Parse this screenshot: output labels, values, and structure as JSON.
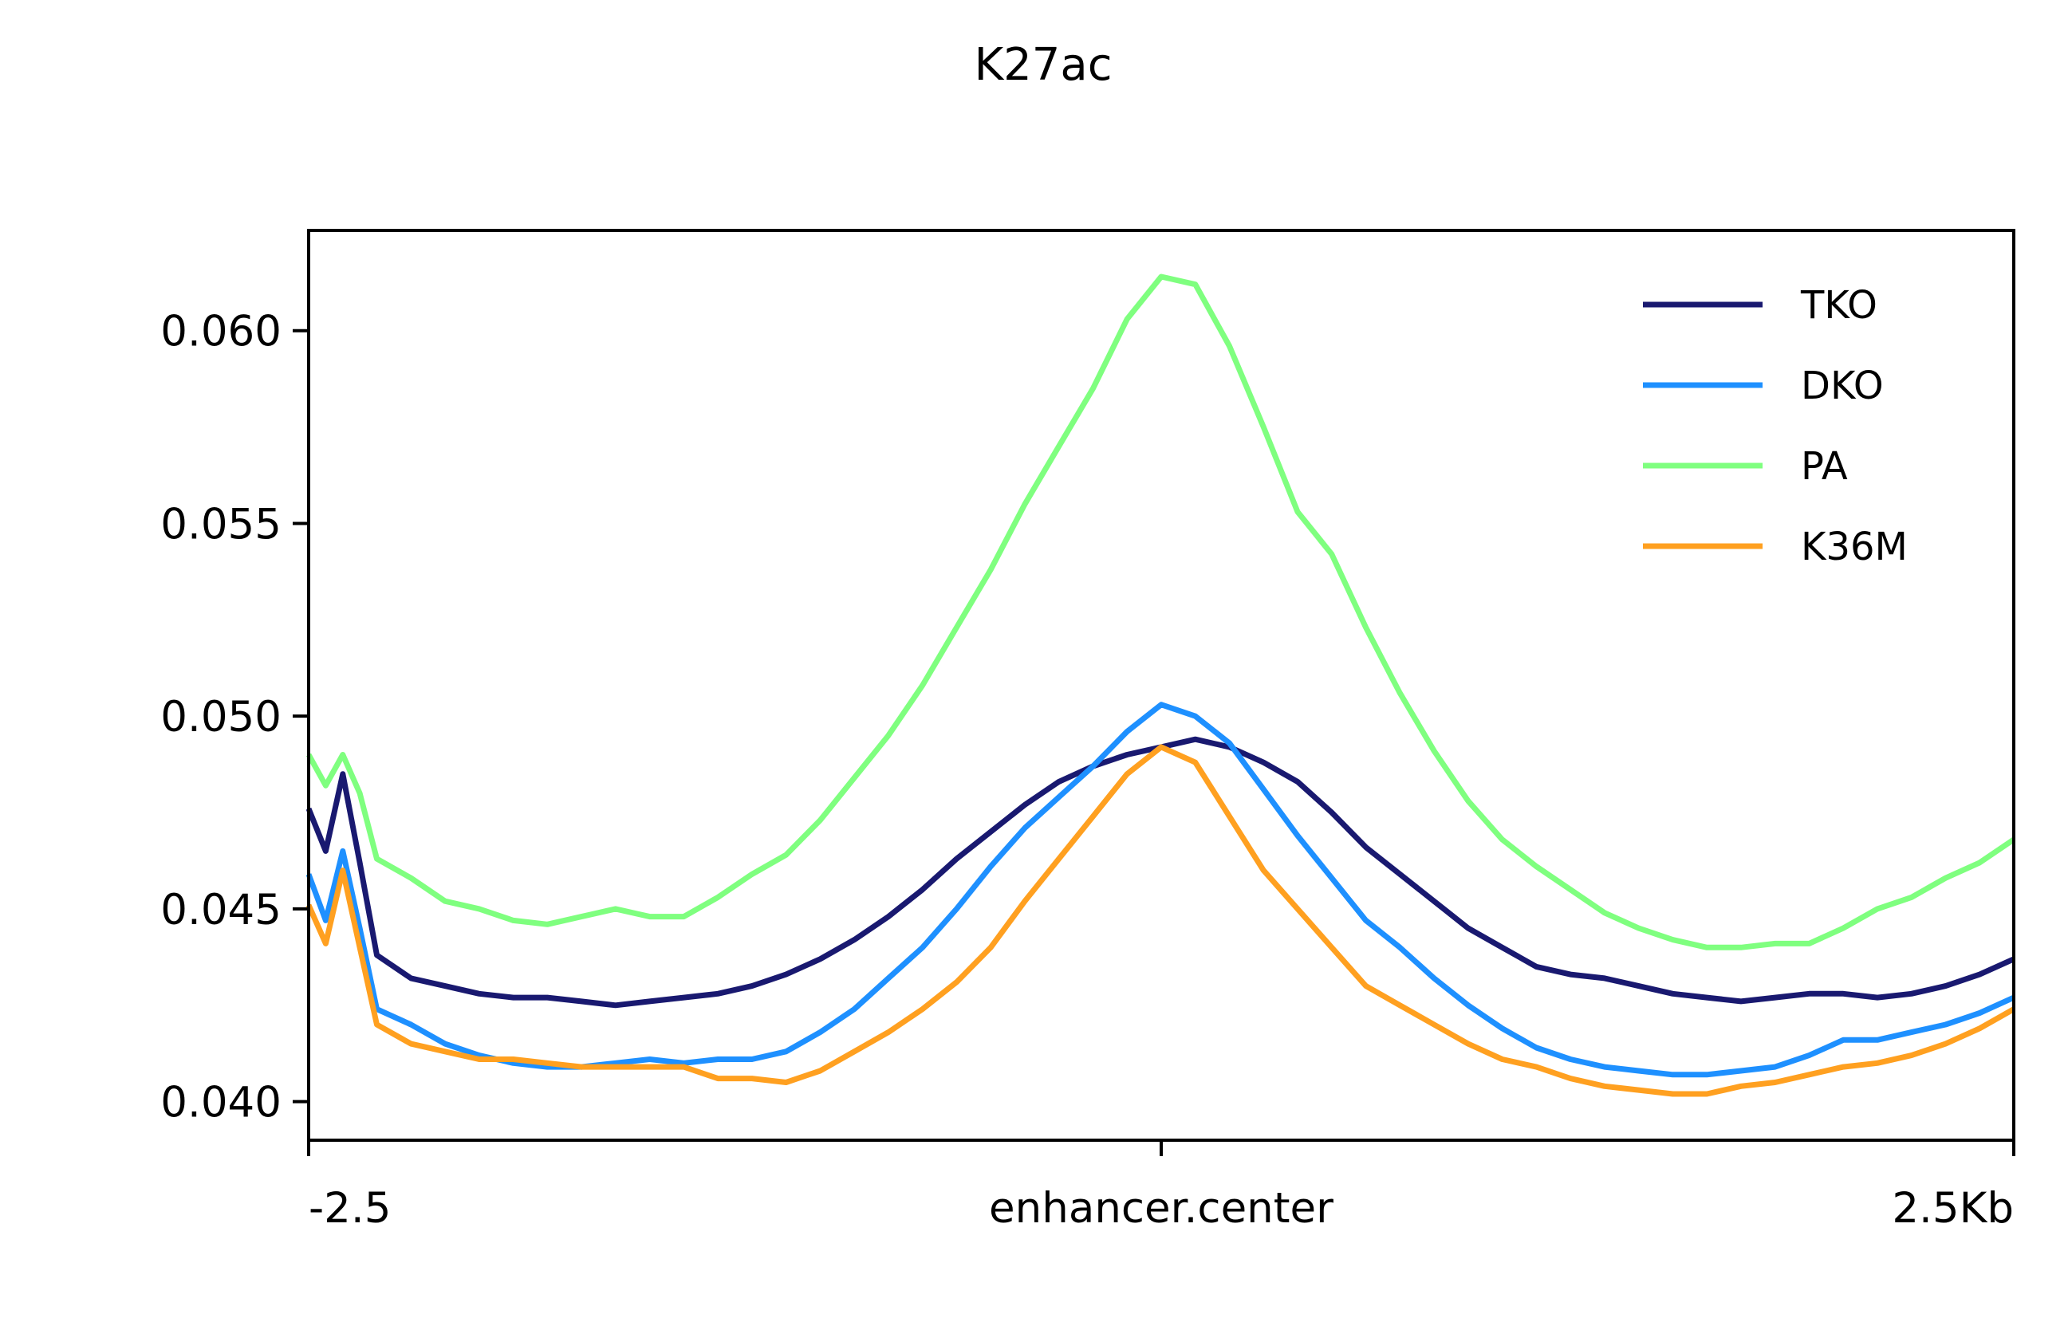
{
  "chart_data": {
    "type": "line",
    "title": "K27ac",
    "xlabel": "",
    "ylabel": "",
    "xlim": [
      -2.5,
      2.5
    ],
    "ylim": [
      0.039,
      0.0626
    ],
    "x_ticks": [
      {
        "value": -2.5,
        "label": "-2.5"
      },
      {
        "value": 0,
        "label": "enhancer.center"
      },
      {
        "value": 2.5,
        "label": "2.5Kb"
      }
    ],
    "y_ticks": [
      {
        "value": 0.04,
        "label": "0.040"
      },
      {
        "value": 0.045,
        "label": "0.045"
      },
      {
        "value": 0.05,
        "label": "0.050"
      },
      {
        "value": 0.055,
        "label": "0.055"
      },
      {
        "value": 0.06,
        "label": "0.060"
      }
    ],
    "grid": false,
    "legend_position": "top-right",
    "series": [
      {
        "name": "TKO",
        "color": "#191970",
        "points": [
          [
            -2.5,
            0.0476
          ],
          [
            -2.45,
            0.0465
          ],
          [
            -2.4,
            0.0485
          ],
          [
            -2.35,
            0.0462
          ],
          [
            -2.3,
            0.0438
          ],
          [
            -2.2,
            0.0432
          ],
          [
            -2.1,
            0.043
          ],
          [
            -2.0,
            0.0428
          ],
          [
            -1.9,
            0.0427
          ],
          [
            -1.8,
            0.0427
          ],
          [
            -1.7,
            0.0426
          ],
          [
            -1.6,
            0.0425
          ],
          [
            -1.5,
            0.0426
          ],
          [
            -1.4,
            0.0427
          ],
          [
            -1.3,
            0.0428
          ],
          [
            -1.2,
            0.043
          ],
          [
            -1.1,
            0.0433
          ],
          [
            -1.0,
            0.0437
          ],
          [
            -0.9,
            0.0442
          ],
          [
            -0.8,
            0.0448
          ],
          [
            -0.7,
            0.0455
          ],
          [
            -0.6,
            0.0463
          ],
          [
            -0.5,
            0.047
          ],
          [
            -0.4,
            0.0477
          ],
          [
            -0.3,
            0.0483
          ],
          [
            -0.2,
            0.0487
          ],
          [
            -0.1,
            0.049
          ],
          [
            0.0,
            0.0492
          ],
          [
            0.1,
            0.0494
          ],
          [
            0.2,
            0.0492
          ],
          [
            0.3,
            0.0488
          ],
          [
            0.4,
            0.0483
          ],
          [
            0.5,
            0.0475
          ],
          [
            0.6,
            0.0466
          ],
          [
            0.7,
            0.0459
          ],
          [
            0.8,
            0.0452
          ],
          [
            0.9,
            0.0445
          ],
          [
            1.0,
            0.044
          ],
          [
            1.1,
            0.0435
          ],
          [
            1.2,
            0.0433
          ],
          [
            1.3,
            0.0432
          ],
          [
            1.4,
            0.043
          ],
          [
            1.5,
            0.0428
          ],
          [
            1.6,
            0.0427
          ],
          [
            1.7,
            0.0426
          ],
          [
            1.8,
            0.0427
          ],
          [
            1.9,
            0.0428
          ],
          [
            2.0,
            0.0428
          ],
          [
            2.1,
            0.0427
          ],
          [
            2.2,
            0.0428
          ],
          [
            2.3,
            0.043
          ],
          [
            2.4,
            0.0433
          ],
          [
            2.5,
            0.0437
          ]
        ]
      },
      {
        "name": "DKO",
        "color": "#1e90ff",
        "points": [
          [
            -2.5,
            0.0459
          ],
          [
            -2.45,
            0.0447
          ],
          [
            -2.4,
            0.0465
          ],
          [
            -2.35,
            0.0445
          ],
          [
            -2.3,
            0.0424
          ],
          [
            -2.2,
            0.042
          ],
          [
            -2.1,
            0.0415
          ],
          [
            -2.0,
            0.0412
          ],
          [
            -1.9,
            0.041
          ],
          [
            -1.8,
            0.0409
          ],
          [
            -1.7,
            0.0409
          ],
          [
            -1.6,
            0.041
          ],
          [
            -1.5,
            0.0411
          ],
          [
            -1.4,
            0.041
          ],
          [
            -1.3,
            0.0411
          ],
          [
            -1.2,
            0.0411
          ],
          [
            -1.1,
            0.0413
          ],
          [
            -1.0,
            0.0418
          ],
          [
            -0.9,
            0.0424
          ],
          [
            -0.8,
            0.0432
          ],
          [
            -0.7,
            0.044
          ],
          [
            -0.6,
            0.045
          ],
          [
            -0.5,
            0.0461
          ],
          [
            -0.4,
            0.0471
          ],
          [
            -0.3,
            0.0479
          ],
          [
            -0.2,
            0.0487
          ],
          [
            -0.1,
            0.0496
          ],
          [
            0.0,
            0.0503
          ],
          [
            0.1,
            0.05
          ],
          [
            0.2,
            0.0493
          ],
          [
            0.3,
            0.0481
          ],
          [
            0.4,
            0.0469
          ],
          [
            0.5,
            0.0458
          ],
          [
            0.6,
            0.0447
          ],
          [
            0.7,
            0.044
          ],
          [
            0.8,
            0.0432
          ],
          [
            0.9,
            0.0425
          ],
          [
            1.0,
            0.0419
          ],
          [
            1.1,
            0.0414
          ],
          [
            1.2,
            0.0411
          ],
          [
            1.3,
            0.0409
          ],
          [
            1.4,
            0.0408
          ],
          [
            1.5,
            0.0407
          ],
          [
            1.6,
            0.0407
          ],
          [
            1.7,
            0.0408
          ],
          [
            1.8,
            0.0409
          ],
          [
            1.9,
            0.0412
          ],
          [
            2.0,
            0.0416
          ],
          [
            2.1,
            0.0416
          ],
          [
            2.2,
            0.0418
          ],
          [
            2.3,
            0.042
          ],
          [
            2.4,
            0.0423
          ],
          [
            2.5,
            0.0427
          ]
        ]
      },
      {
        "name": "PA",
        "color": "#7fff7f",
        "points": [
          [
            -2.5,
            0.049
          ],
          [
            -2.45,
            0.0482
          ],
          [
            -2.4,
            0.049
          ],
          [
            -2.35,
            0.048
          ],
          [
            -2.3,
            0.0463
          ],
          [
            -2.2,
            0.0458
          ],
          [
            -2.1,
            0.0452
          ],
          [
            -2.0,
            0.045
          ],
          [
            -1.9,
            0.0447
          ],
          [
            -1.8,
            0.0446
          ],
          [
            -1.7,
            0.0448
          ],
          [
            -1.6,
            0.045
          ],
          [
            -1.5,
            0.0448
          ],
          [
            -1.4,
            0.0448
          ],
          [
            -1.3,
            0.0453
          ],
          [
            -1.2,
            0.0459
          ],
          [
            -1.1,
            0.0464
          ],
          [
            -1.0,
            0.0473
          ],
          [
            -0.9,
            0.0484
          ],
          [
            -0.8,
            0.0495
          ],
          [
            -0.7,
            0.0508
          ],
          [
            -0.6,
            0.0523
          ],
          [
            -0.5,
            0.0538
          ],
          [
            -0.4,
            0.0555
          ],
          [
            -0.3,
            0.057
          ],
          [
            -0.2,
            0.0585
          ],
          [
            -0.1,
            0.0603
          ],
          [
            0.0,
            0.0614
          ],
          [
            0.1,
            0.0612
          ],
          [
            0.2,
            0.0596
          ],
          [
            0.3,
            0.0575
          ],
          [
            0.4,
            0.0553
          ],
          [
            0.5,
            0.0542
          ],
          [
            0.6,
            0.0523
          ],
          [
            0.7,
            0.0506
          ],
          [
            0.8,
            0.0491
          ],
          [
            0.9,
            0.0478
          ],
          [
            1.0,
            0.0468
          ],
          [
            1.1,
            0.0461
          ],
          [
            1.2,
            0.0455
          ],
          [
            1.3,
            0.0449
          ],
          [
            1.4,
            0.0445
          ],
          [
            1.5,
            0.0442
          ],
          [
            1.6,
            0.044
          ],
          [
            1.7,
            0.044
          ],
          [
            1.8,
            0.0441
          ],
          [
            1.9,
            0.0441
          ],
          [
            2.0,
            0.0445
          ],
          [
            2.1,
            0.045
          ],
          [
            2.2,
            0.0453
          ],
          [
            2.3,
            0.0458
          ],
          [
            2.4,
            0.0462
          ],
          [
            2.5,
            0.0468
          ]
        ]
      },
      {
        "name": "K36M",
        "color": "#ffa020",
        "points": [
          [
            -2.5,
            0.0451
          ],
          [
            -2.45,
            0.0441
          ],
          [
            -2.4,
            0.046
          ],
          [
            -2.35,
            0.044
          ],
          [
            -2.3,
            0.042
          ],
          [
            -2.2,
            0.0415
          ],
          [
            -2.1,
            0.0413
          ],
          [
            -2.0,
            0.0411
          ],
          [
            -1.9,
            0.0411
          ],
          [
            -1.8,
            0.041
          ],
          [
            -1.7,
            0.0409
          ],
          [
            -1.6,
            0.0409
          ],
          [
            -1.5,
            0.0409
          ],
          [
            -1.4,
            0.0409
          ],
          [
            -1.3,
            0.0406
          ],
          [
            -1.2,
            0.0406
          ],
          [
            -1.1,
            0.0405
          ],
          [
            -1.0,
            0.0408
          ],
          [
            -0.9,
            0.0413
          ],
          [
            -0.8,
            0.0418
          ],
          [
            -0.7,
            0.0424
          ],
          [
            -0.6,
            0.0431
          ],
          [
            -0.5,
            0.044
          ],
          [
            -0.4,
            0.0452
          ],
          [
            -0.3,
            0.0463
          ],
          [
            -0.2,
            0.0474
          ],
          [
            -0.1,
            0.0485
          ],
          [
            0.0,
            0.0492
          ],
          [
            0.1,
            0.0488
          ],
          [
            0.2,
            0.0474
          ],
          [
            0.3,
            0.046
          ],
          [
            0.4,
            0.045
          ],
          [
            0.5,
            0.044
          ],
          [
            0.6,
            0.043
          ],
          [
            0.7,
            0.0425
          ],
          [
            0.8,
            0.042
          ],
          [
            0.9,
            0.0415
          ],
          [
            1.0,
            0.0411
          ],
          [
            1.1,
            0.0409
          ],
          [
            1.2,
            0.0406
          ],
          [
            1.3,
            0.0404
          ],
          [
            1.4,
            0.0403
          ],
          [
            1.5,
            0.0402
          ],
          [
            1.6,
            0.0402
          ],
          [
            1.7,
            0.0404
          ],
          [
            1.8,
            0.0405
          ],
          [
            1.9,
            0.0407
          ],
          [
            2.0,
            0.0409
          ],
          [
            2.1,
            0.041
          ],
          [
            2.2,
            0.0412
          ],
          [
            2.3,
            0.0415
          ],
          [
            2.4,
            0.0419
          ],
          [
            2.5,
            0.0424
          ]
        ]
      }
    ]
  }
}
